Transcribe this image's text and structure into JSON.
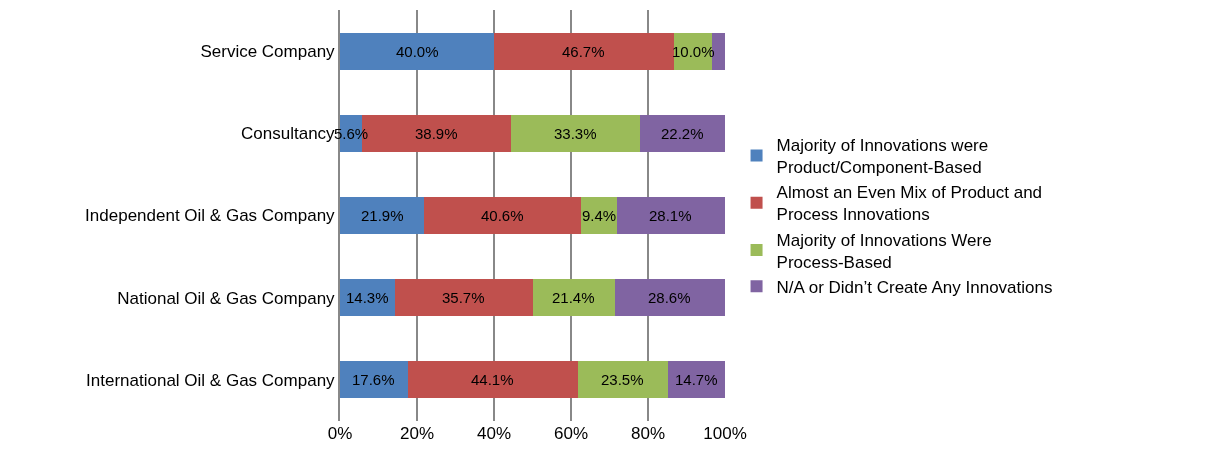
{
  "chart_data": {
    "type": "bar",
    "orientation": "horizontal",
    "stacked": true,
    "categories": [
      "Service Company",
      "Consultancy",
      "Independent Oil & Gas Company",
      "National Oil & Gas Company",
      "International Oil & Gas Company"
    ],
    "series": [
      {
        "name": "Majority of Innovations were Product/Component-Based",
        "color": "#4f81bd",
        "values": [
          40.0,
          5.6,
          21.9,
          14.3,
          17.6
        ],
        "value_labels": [
          "40.0%",
          "5.6%",
          "21.9%",
          "14.3%",
          "17.6%"
        ]
      },
      {
        "name": "Almost an Even Mix of Product and Process Innovations",
        "color": "#c0504d",
        "values": [
          46.7,
          38.9,
          40.6,
          35.7,
          44.1
        ],
        "value_labels": [
          "46.7%",
          "38.9%",
          "40.6%",
          "35.7%",
          "44.1%"
        ]
      },
      {
        "name": "Majority of Innovations Were Process-Based",
        "color": "#9bbb59",
        "values": [
          10.0,
          33.3,
          9.4,
          21.4,
          23.5
        ],
        "value_labels": [
          "10.0%",
          "33.3%",
          "9.4%",
          "21.4%",
          "23.5%"
        ]
      },
      {
        "name": "N/A or Didn’t Create Any Innovations",
        "color": "#8064a2",
        "values": [
          3.3,
          22.2,
          28.1,
          28.6,
          14.7
        ],
        "value_labels": [
          null,
          "22.2%",
          "28.1%",
          "28.6%",
          "14.7%"
        ]
      }
    ],
    "xlim": [
      0,
      100
    ],
    "xticks": [
      {
        "value": 0,
        "label": "0%"
      },
      {
        "value": 20,
        "label": "20%"
      },
      {
        "value": 40,
        "label": "40%"
      },
      {
        "value": 60,
        "label": "60%"
      },
      {
        "value": 80,
        "label": "80%"
      },
      {
        "value": 100,
        "label": "100%"
      }
    ],
    "grid": "x",
    "legend": "right"
  }
}
